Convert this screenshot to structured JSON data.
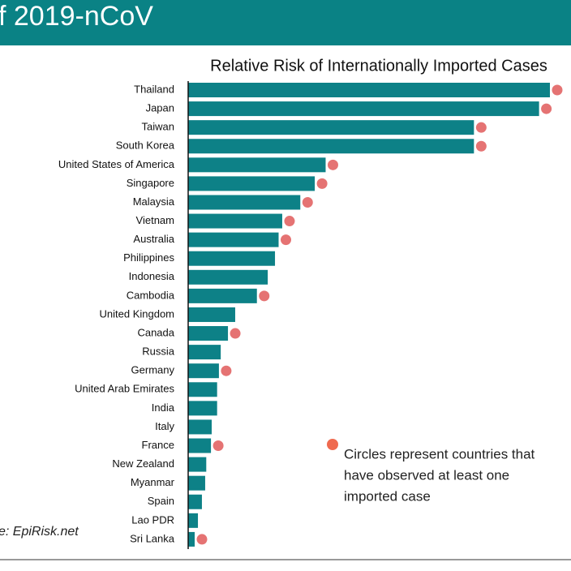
{
  "header": {
    "title": "f 2019-nCoV"
  },
  "source": "e: EpiRisk.net",
  "chart_data": {
    "type": "bar",
    "orientation": "horizontal",
    "title": "Relative Risk of Internationally Imported Cases",
    "categories": [
      "Thailand",
      "Japan",
      "Taiwan",
      "South Korea",
      "United States of America",
      "Singapore",
      "Malaysia",
      "Vietnam",
      "Australia",
      "Philippines",
      "Indonesia",
      "Cambodia",
      "United Kingdom",
      "Canada",
      "Russia",
      "Germany",
      "United Arab Emirates",
      "India",
      "Italy",
      "France",
      "New Zealand",
      "Myanmar",
      "Spain",
      "Lao PDR",
      "Sri Lanka"
    ],
    "values": [
      1.0,
      0.97,
      0.79,
      0.79,
      0.38,
      0.35,
      0.31,
      0.26,
      0.25,
      0.24,
      0.22,
      0.19,
      0.13,
      0.11,
      0.09,
      0.085,
      0.08,
      0.08,
      0.065,
      0.063,
      0.05,
      0.047,
      0.038,
      0.027,
      0.018
    ],
    "observed": [
      true,
      true,
      true,
      true,
      true,
      true,
      true,
      true,
      true,
      false,
      false,
      true,
      false,
      true,
      false,
      true,
      false,
      false,
      false,
      true,
      false,
      false,
      false,
      false,
      true
    ],
    "color": "#0d8187",
    "marker_color": "#e57373",
    "xlim": [
      0,
      1
    ],
    "legend": {
      "text": [
        "Circles represent countries that",
        "have observed at least one",
        "imported case"
      ],
      "color": "#ef6a4f"
    }
  }
}
